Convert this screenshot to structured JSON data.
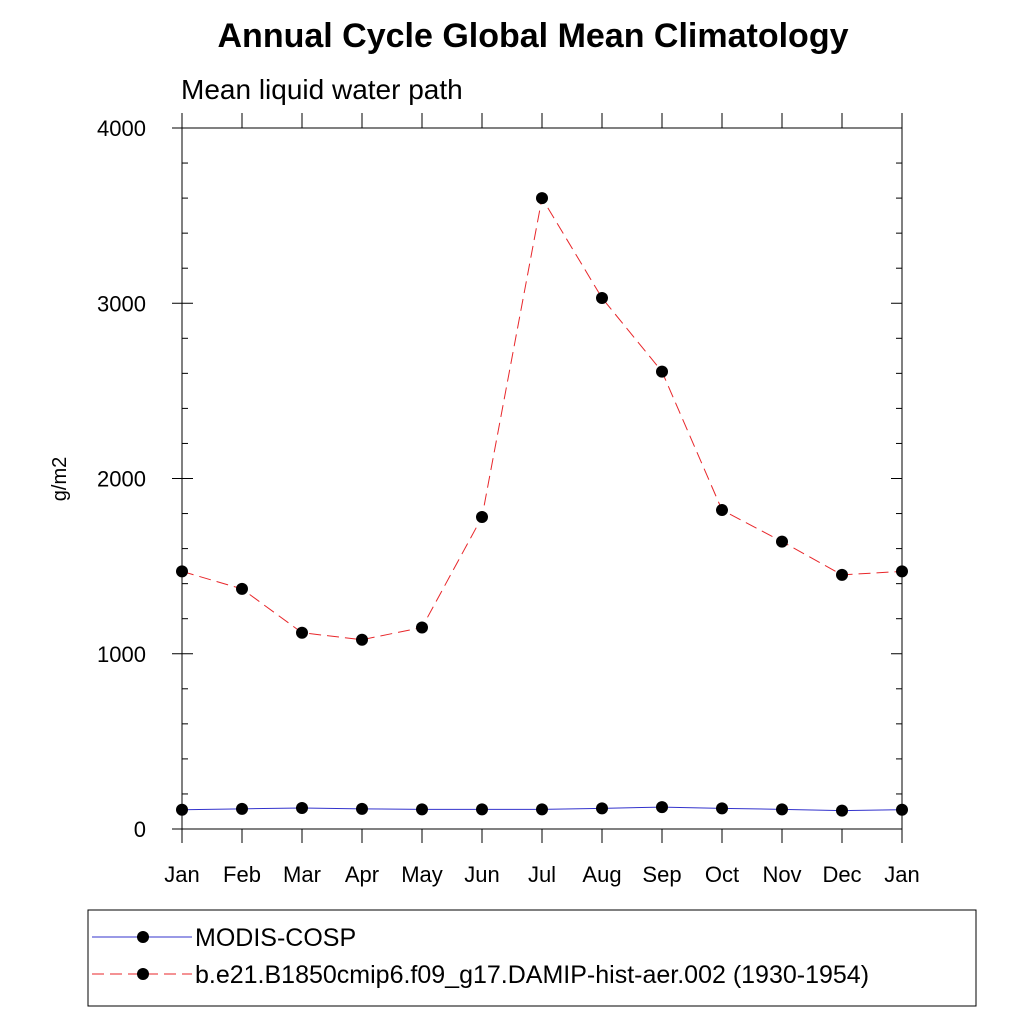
{
  "chart_data": {
    "type": "line",
    "title": "Annual Cycle Global Mean Climatology",
    "subtitle": "Mean liquid water path",
    "xlabel": "",
    "ylabel": "g/m2",
    "categories": [
      "Jan",
      "Feb",
      "Mar",
      "Apr",
      "May",
      "Jun",
      "Jul",
      "Aug",
      "Sep",
      "Oct",
      "Nov",
      "Dec",
      "Jan"
    ],
    "yticks": [
      "0",
      "1000",
      "2000",
      "3000",
      "4000"
    ],
    "ylim": [
      0,
      4000
    ],
    "grid": false,
    "legend_position": "bottom",
    "series": [
      {
        "name": "MODIS-COSP",
        "color": "#3333cc",
        "dash": "solid",
        "values": [
          110,
          115,
          120,
          115,
          112,
          112,
          112,
          118,
          125,
          118,
          112,
          105,
          110
        ]
      },
      {
        "name": "b.e21.B1850cmip6.f09_g17.DAMIP-hist-aer.002 (1930-1954)",
        "color": "#e8262a",
        "dash": "dashed",
        "values": [
          1470,
          1370,
          1120,
          1080,
          1150,
          1780,
          3600,
          3030,
          2610,
          1820,
          1640,
          1450,
          1470
        ]
      }
    ]
  }
}
